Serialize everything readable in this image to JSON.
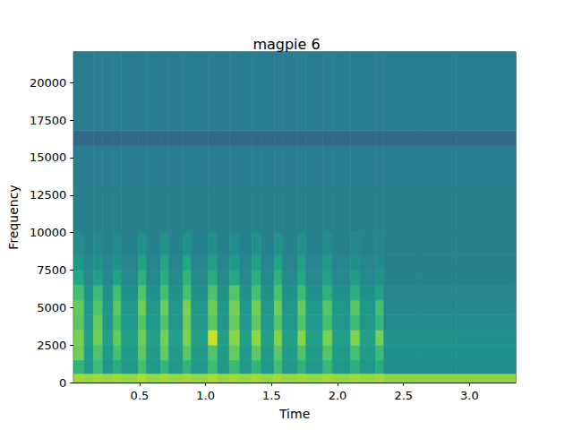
{
  "chart_data": {
    "type": "heatmap",
    "title": "magpie 6",
    "x_label": "Time",
    "y_label": "Frequency",
    "xlim": [
      0,
      3.35
    ],
    "ylim": [
      0,
      22050
    ],
    "xticks": [
      0.5,
      {
        "value": 1,
        "label": "1.0"
      },
      1.5,
      {
        "value": 2,
        "label": "2.0"
      },
      2.5,
      {
        "value": 3,
        "label": "3.0"
      }
    ],
    "yticks": [
      0,
      2500,
      5000,
      7500,
      10000,
      12500,
      15000,
      17500,
      20000
    ],
    "grid": false,
    "color_range": [
      0,
      10
    ],
    "x_bins": [
      0,
      0.08,
      0.15,
      0.22,
      0.3,
      0.36,
      0.49,
      0.55,
      0.66,
      0.72,
      0.83,
      0.89,
      1.02,
      1.09,
      1.18,
      1.26,
      1.35,
      1.42,
      1.52,
      1.58,
      1.7,
      1.76,
      1.89,
      1.96,
      2.1,
      2.17,
      2.29,
      2.35,
      2.6,
      2.9,
      3.35
    ],
    "y_bins": [
      0,
      600,
      1500,
      2500,
      3500,
      4500,
      5500,
      6500,
      7500,
      8500,
      10000,
      13000,
      15800,
      16800,
      22050
    ],
    "cells": [
      [
        8.6,
        8.4,
        8.6,
        8.4,
        8.6,
        8.4,
        8.7,
        8.4,
        8.6,
        8.4,
        8.6,
        8.4,
        8.7,
        8.4,
        8.6,
        8.4,
        8.6,
        8.4,
        8.6,
        8.4,
        8.6,
        8.4,
        8.6,
        8.4,
        8.6,
        8.4,
        8.6,
        8.3,
        8.3,
        8.3
      ],
      [
        6.5,
        5.3,
        6.8,
        5.3,
        6.2,
        5.3,
        7.0,
        5.3,
        6.6,
        5.3,
        6.5,
        5.3,
        6.8,
        5.3,
        6.7,
        5.3,
        6.5,
        5.3,
        6.9,
        5.3,
        6.4,
        5.3,
        6.6,
        5.3,
        6.3,
        5.3,
        6.2,
        4.9,
        4.9,
        4.9
      ],
      [
        7.8,
        5.4,
        7.2,
        5.4,
        7.0,
        5.4,
        7.5,
        5.4,
        7.6,
        5.4,
        7.4,
        5.4,
        7.3,
        5.4,
        7.6,
        5.4,
        7.5,
        5.4,
        7.4,
        5.4,
        7.2,
        5.4,
        7.3,
        5.4,
        7.0,
        5.4,
        6.8,
        5.0,
        5.0,
        5.0
      ],
      [
        8.0,
        5.6,
        7.8,
        5.6,
        7.6,
        5.6,
        7.8,
        5.6,
        7.9,
        5.6,
        8.0,
        5.6,
        9.2,
        5.6,
        8.2,
        5.6,
        8.3,
        5.6,
        8.1,
        5.6,
        8.2,
        5.6,
        8.0,
        5.6,
        8.1,
        5.6,
        7.9,
        5.1,
        5.1,
        5.0
      ],
      [
        7.4,
        5.2,
        7.6,
        5.2,
        7.0,
        5.2,
        7.3,
        5.2,
        7.2,
        5.2,
        7.8,
        5.2,
        7.4,
        5.2,
        7.6,
        5.2,
        7.5,
        5.2,
        7.3,
        5.2,
        7.2,
        5.2,
        7.0,
        5.2,
        6.8,
        5.2,
        6.6,
        4.7,
        4.7,
        4.7
      ],
      [
        7.6,
        5.2,
        7.2,
        5.2,
        7.4,
        5.2,
        7.8,
        5.2,
        7.7,
        5.2,
        8.0,
        5.2,
        7.8,
        5.2,
        7.9,
        5.2,
        7.8,
        5.2,
        7.7,
        5.2,
        7.6,
        5.2,
        7.3,
        5.2,
        7.4,
        5.2,
        7.0,
        4.6,
        4.6,
        4.6
      ],
      [
        7.0,
        5.0,
        6.8,
        5.0,
        6.9,
        5.0,
        7.2,
        5.0,
        7.0,
        5.0,
        7.1,
        5.0,
        7.2,
        5.0,
        7.3,
        5.0,
        7.0,
        5.0,
        7.1,
        5.0,
        6.8,
        5.0,
        6.4,
        5.0,
        6.3,
        5.0,
        5.8,
        4.5,
        4.5,
        4.5
      ],
      [
        6.0,
        4.7,
        5.6,
        4.7,
        5.8,
        4.7,
        6.4,
        4.7,
        6.3,
        4.7,
        6.5,
        4.7,
        6.2,
        4.7,
        6.0,
        4.7,
        6.3,
        4.7,
        6.4,
        4.7,
        6.0,
        4.7,
        5.8,
        4.7,
        5.5,
        4.7,
        5.0,
        4.4,
        4.4,
        4.4
      ],
      [
        5.2,
        4.5,
        5.0,
        4.5,
        5.0,
        4.5,
        5.8,
        4.5,
        5.9,
        4.5,
        6.0,
        4.5,
        5.6,
        4.5,
        5.4,
        4.5,
        5.6,
        4.5,
        5.8,
        4.5,
        5.5,
        4.5,
        5.4,
        4.5,
        5.0,
        4.5,
        4.7,
        4.3,
        4.3,
        4.3
      ],
      [
        4.8,
        4.4,
        4.7,
        4.4,
        4.7,
        4.4,
        5.0,
        4.4,
        5.1,
        4.4,
        5.0,
        4.4,
        4.9,
        4.4,
        4.8,
        4.4,
        4.9,
        4.4,
        5.0,
        4.4,
        4.9,
        4.4,
        4.8,
        4.4,
        4.6,
        4.4,
        4.5,
        4.3,
        4.3,
        4.3
      ],
      [
        4.3,
        4.3,
        4.3,
        4.3,
        4.3,
        4.3,
        4.3,
        4.3,
        4.3,
        4.3,
        4.3,
        4.3,
        4.3,
        4.3,
        4.3,
        4.3,
        4.3,
        4.3,
        4.3,
        4.3,
        4.3,
        4.3,
        4.3,
        4.3,
        4.3,
        4.3,
        4.3,
        4.3,
        4.3,
        4.3
      ],
      [
        4.2,
        4.2,
        4.2,
        4.2,
        4.2,
        4.2,
        4.2,
        4.2,
        4.2,
        4.2,
        4.2,
        4.2,
        4.2,
        4.2,
        4.2,
        4.2,
        4.2,
        4.2,
        4.2,
        4.2,
        4.2,
        4.2,
        4.2,
        4.2,
        4.2,
        4.2,
        4.2,
        4.2,
        4.2,
        4.2
      ],
      [
        3.4,
        3.4,
        3.4,
        3.4,
        3.4,
        3.4,
        3.4,
        3.4,
        3.4,
        3.4,
        3.4,
        3.4,
        3.4,
        3.4,
        3.4,
        3.4,
        3.4,
        3.4,
        3.4,
        3.4,
        3.4,
        3.4,
        3.4,
        3.4,
        3.4,
        3.4,
        3.4,
        3.4,
        3.4,
        3.4
      ],
      [
        4.2,
        4.2,
        4.2,
        4.2,
        4.2,
        4.2,
        4.2,
        4.2,
        4.2,
        4.2,
        4.2,
        4.2,
        4.2,
        4.2,
        4.2,
        4.2,
        4.2,
        4.2,
        4.2,
        4.2,
        4.2,
        4.2,
        4.2,
        4.2,
        4.2,
        4.2,
        4.2,
        4.2,
        4.2,
        4.2
      ]
    ]
  }
}
